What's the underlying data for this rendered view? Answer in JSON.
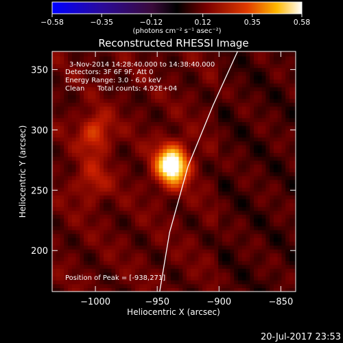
{
  "chart_data": {
    "type": "heatmap",
    "title": "Reconstructed RHESSI Image",
    "xlabel": "Heliocentric X (arcsec)",
    "ylabel": "Heliocentric Y (arcsec)",
    "xlim": [
      -1035,
      -838
    ],
    "ylim": [
      166,
      365
    ],
    "x_ticks": [
      -1000,
      -950,
      -900,
      -850
    ],
    "y_ticks": [
      200,
      250,
      300,
      350
    ],
    "colorbar": {
      "range": [
        -0.58,
        0.58
      ],
      "ticks": [
        -0.58,
        -0.35,
        -0.12,
        0.12,
        0.35,
        0.58
      ],
      "label": "(photons cm⁻² s⁻¹ asec⁻²)"
    },
    "annotations": {
      "time": "3-Nov-2014 14:28:40.000 to 14:38:40.000",
      "detectors": "Detectors: 3F 6F 9F, Att 0",
      "energy": "Energy Range: 3.0 - 6.0 keV",
      "clean": "Clean",
      "counts": "Total counts: 4.92E+04",
      "peak": "Position of Peak = [-938,271]"
    },
    "peak": {
      "x": -938,
      "y": 271
    },
    "sources": [
      {
        "x": -938,
        "y": 271,
        "amp": 0.58,
        "sigma": 9
      },
      {
        "x": -1000,
        "y": 298,
        "amp": 0.2,
        "sigma": 9
      },
      {
        "x": -1003,
        "y": 258,
        "amp": 0.12,
        "sigma": 10
      }
    ],
    "limb_points": [
      [
        -948,
        166
      ],
      [
        -940,
        215
      ],
      [
        -925,
        270
      ],
      [
        -905,
        320
      ],
      [
        -885,
        365
      ]
    ],
    "footer_timestamp": "20-Jul-2017 23:53"
  },
  "colors": {
    "background": "#000000",
    "limb": "#ffffff",
    "text": "#ffffff"
  }
}
